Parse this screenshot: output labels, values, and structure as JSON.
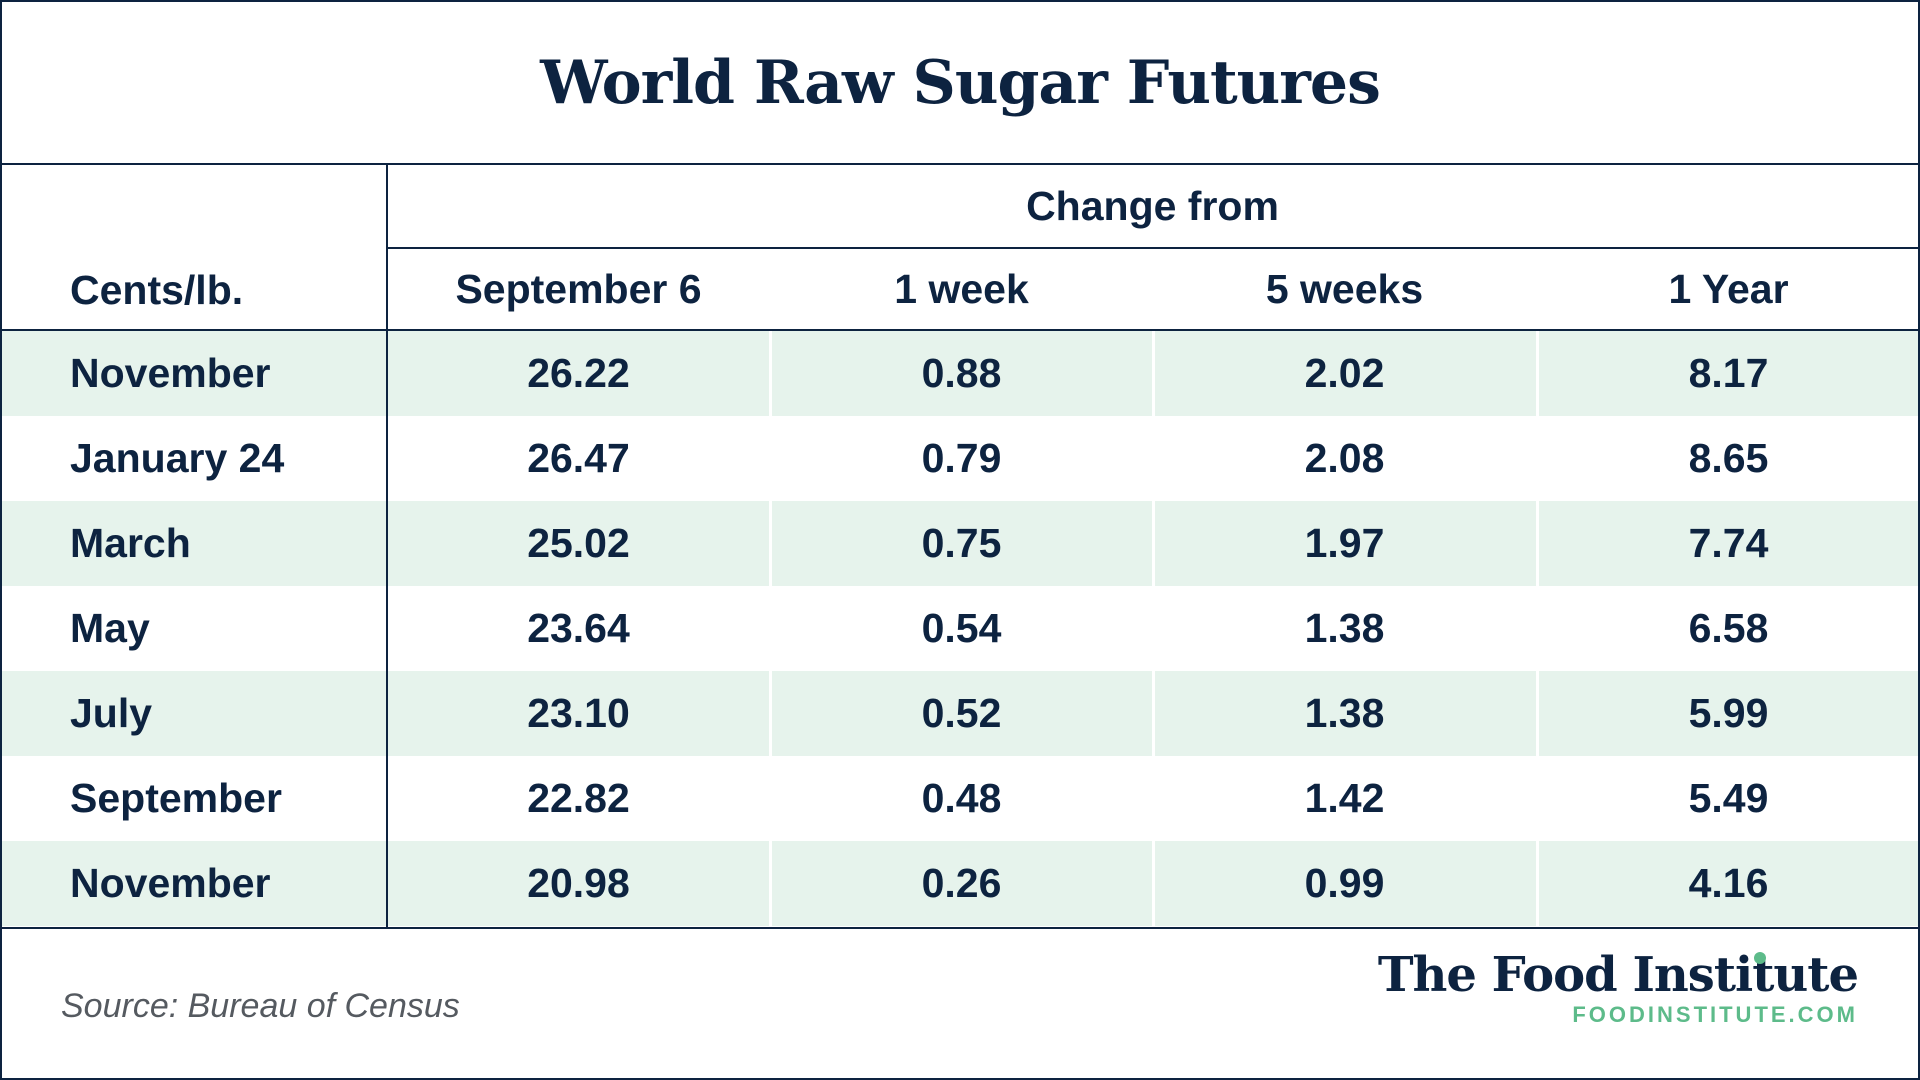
{
  "chart_data": {
    "type": "table",
    "title": "World Raw Sugar Futures",
    "group_header": "Change from",
    "row_header": "Cents/lb.",
    "columns": [
      "September 6",
      "1 week",
      "5 weeks",
      "1 Year"
    ],
    "rows": [
      {
        "label": "November",
        "values": [
          "26.22",
          "0.88",
          "2.02",
          "8.17"
        ]
      },
      {
        "label": "January 24",
        "values": [
          "26.47",
          "0.79",
          "2.08",
          "8.65"
        ]
      },
      {
        "label": "March",
        "values": [
          "25.02",
          "0.75",
          "1.97",
          "7.74"
        ]
      },
      {
        "label": "May",
        "values": [
          "23.64",
          "0.54",
          "1.38",
          "6.58"
        ]
      },
      {
        "label": "July",
        "values": [
          "23.10",
          "0.52",
          "1.38",
          "5.99"
        ]
      },
      {
        "label": "September",
        "values": [
          "22.82",
          "0.48",
          "1.42",
          "5.49"
        ]
      },
      {
        "label": "November",
        "values": [
          "20.98",
          "0.26",
          "0.99",
          "4.16"
        ]
      }
    ]
  },
  "footer": {
    "source": "Source: Bureau of Census",
    "logo_name": "The Food Institute",
    "logo_url": "FOODINSTITUTE.COM"
  },
  "colors": {
    "text": "#0d2340",
    "row_shade": "#e6f3ec",
    "accent": "#5dbb8a"
  }
}
